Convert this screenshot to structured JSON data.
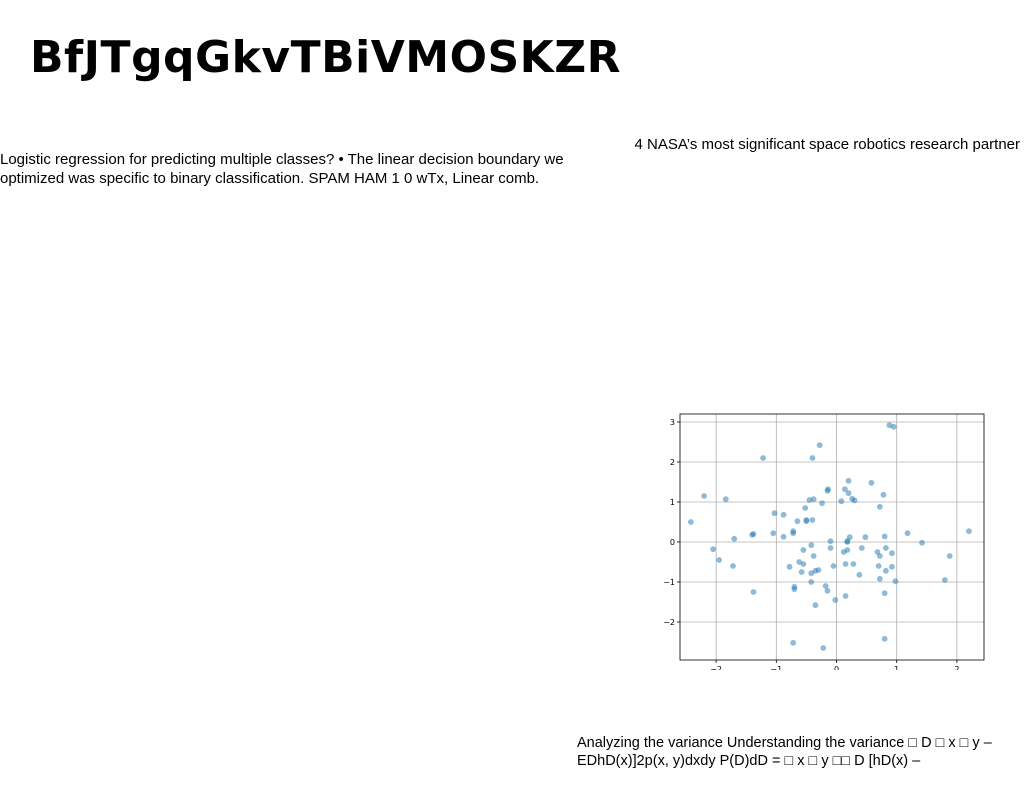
{
  "header": {
    "title": "BfJTgqGkvTBiVMOSKZR"
  },
  "left_text": "Logistic regression for predicting multiple classes? • The linear decision boundary we optimized was specific to binary classification. SPAM HAM 1 0 wTx, Linear comb.",
  "right_text": "4 NASA’s most significant space robotics research partner",
  "bottom_text": "Analyzing the variance Understanding the variance □ D □ x □ y – EDhD(x)]2p(x, y)dxdy P(D)dD = □ x □ y □□ D [hD(x) –",
  "chart_data": {
    "type": "scatter",
    "title": "",
    "xlabel": "",
    "ylabel": "",
    "xlim": [
      -2.6,
      2.45
    ],
    "ylim": [
      -2.95,
      3.2
    ],
    "xticks": [
      -2,
      -1,
      0,
      1,
      2
    ],
    "yticks": [
      -2,
      -1,
      0,
      1,
      2,
      3
    ],
    "xtick_labels": [
      "−2",
      "−1",
      "0",
      "1",
      "2"
    ],
    "ytick_labels": [
      "−2",
      "−1",
      "0",
      "1",
      "2",
      "3"
    ],
    "grid": true,
    "marker_color": "#1f77b4",
    "points": [
      [
        0.88,
        2.92
      ],
      [
        0.95,
        2.88
      ],
      [
        -0.28,
        2.42
      ],
      [
        -1.22,
        2.1
      ],
      [
        -0.4,
        2.1
      ],
      [
        0.2,
        1.53
      ],
      [
        0.58,
        1.48
      ],
      [
        -0.14,
        1.32
      ],
      [
        -0.15,
        1.28
      ],
      [
        0.14,
        1.32
      ],
      [
        0.2,
        1.22
      ],
      [
        0.78,
        1.18
      ],
      [
        -2.2,
        1.15
      ],
      [
        -1.84,
        1.07
      ],
      [
        -0.45,
        1.05
      ],
      [
        -0.38,
        1.07
      ],
      [
        0.26,
        1.08
      ],
      [
        0.3,
        1.04
      ],
      [
        0.08,
        1.02
      ],
      [
        -0.24,
        0.97
      ],
      [
        0.72,
        0.88
      ],
      [
        -0.52,
        0.85
      ],
      [
        -1.03,
        0.72
      ],
      [
        -0.88,
        0.68
      ],
      [
        -0.5,
        0.55
      ],
      [
        -0.5,
        0.52
      ],
      [
        -0.4,
        0.55
      ],
      [
        -0.65,
        0.52
      ],
      [
        -2.42,
        0.5
      ],
      [
        2.2,
        0.27
      ],
      [
        1.18,
        0.22
      ],
      [
        -1.05,
        0.22
      ],
      [
        -1.4,
        0.18
      ],
      [
        -1.38,
        0.2
      ],
      [
        -0.88,
        0.13
      ],
      [
        -0.72,
        0.27
      ],
      [
        -0.72,
        0.22
      ],
      [
        -1.7,
        0.08
      ],
      [
        0.22,
        0.12
      ],
      [
        0.48,
        0.12
      ],
      [
        0.8,
        0.14
      ],
      [
        -0.1,
        0.02
      ],
      [
        0.18,
        0.02
      ],
      [
        0.18,
        0.0
      ],
      [
        1.42,
        -0.02
      ],
      [
        -0.42,
        -0.08
      ],
      [
        -0.1,
        -0.15
      ],
      [
        0.42,
        -0.15
      ],
      [
        0.82,
        -0.15
      ],
      [
        -2.05,
        -0.18
      ],
      [
        -0.55,
        -0.2
      ],
      [
        0.18,
        -0.2
      ],
      [
        0.12,
        -0.25
      ],
      [
        0.68,
        -0.25
      ],
      [
        0.92,
        -0.28
      ],
      [
        1.88,
        -0.35
      ],
      [
        -0.38,
        -0.35
      ],
      [
        0.72,
        -0.35
      ],
      [
        -1.95,
        -0.45
      ],
      [
        -0.62,
        -0.5
      ],
      [
        0.28,
        -0.55
      ],
      [
        -0.55,
        -0.55
      ],
      [
        0.15,
        -0.55
      ],
      [
        -0.05,
        -0.6
      ],
      [
        -1.72,
        -0.6
      ],
      [
        -0.78,
        -0.62
      ],
      [
        0.7,
        -0.6
      ],
      [
        0.92,
        -0.62
      ],
      [
        -0.3,
        -0.7
      ],
      [
        -0.35,
        -0.72
      ],
      [
        -0.58,
        -0.75
      ],
      [
        0.82,
        -0.72
      ],
      [
        -0.42,
        -0.78
      ],
      [
        0.38,
        -0.82
      ],
      [
        0.72,
        -0.92
      ],
      [
        1.8,
        -0.95
      ],
      [
        0.98,
        -0.98
      ],
      [
        -0.42,
        -1.0
      ],
      [
        -0.18,
        -1.1
      ],
      [
        -0.7,
        -1.12
      ],
      [
        -0.7,
        -1.18
      ],
      [
        -0.15,
        -1.22
      ],
      [
        -1.38,
        -1.25
      ],
      [
        0.8,
        -1.28
      ],
      [
        0.15,
        -1.35
      ],
      [
        -0.02,
        -1.45
      ],
      [
        -0.35,
        -1.58
      ],
      [
        0.8,
        -2.42
      ],
      [
        -0.72,
        -2.52
      ],
      [
        -0.22,
        -2.65
      ]
    ]
  }
}
